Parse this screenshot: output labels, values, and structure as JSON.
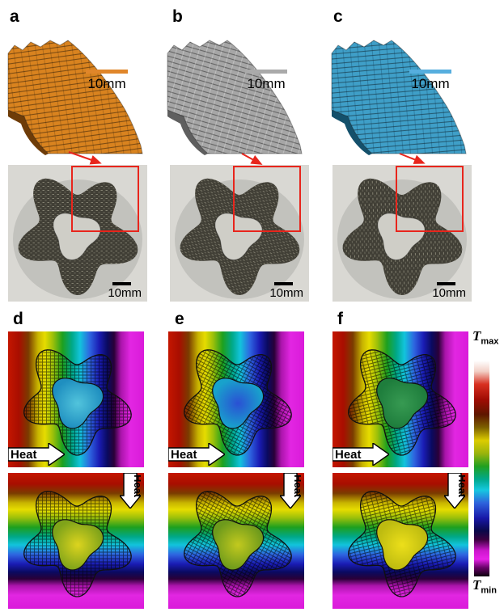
{
  "colors": {
    "accent_red": "#e8251c",
    "render_a": "#d9831f",
    "render_b": "#a6a6a6",
    "render_c": "#3f9fc8",
    "render_a_dark": "#6e3c08",
    "render_b_dark": "#5f5f5f",
    "render_c_dark": "#14506b",
    "scalebar_a": "#e0862a",
    "scalebar_b": "#aaaaaa",
    "scalebar_c": "#56aede",
    "photo_background": "#d9d8d3",
    "photo_hole": "#cfcec7",
    "lattice_dark": "#413f36",
    "hole_d_top_center": "#52c4dc",
    "hole_d_top_edge": "#1f8fc0",
    "hole_e_top_center": "#2a50d4",
    "hole_e_top_edge": "#18a2cc",
    "hole_f_top_center": "#379a52",
    "hole_f_top_edge": "#1e7d3c",
    "hole_d_bottom_center": "#dcd41e",
    "hole_d_bottom_edge": "#7fa31a",
    "hole_e_bottom_center": "#c2c91e",
    "hole_e_bottom_edge": "#6d9a1c",
    "hole_f_bottom_center": "#ecdf1a",
    "hole_f_bottom_edge": "#bdbb10"
  },
  "render_row": {
    "panels": [
      {
        "label": "a",
        "scalebar_label": "10mm"
      },
      {
        "label": "b",
        "scalebar_label": "10mm"
      },
      {
        "label": "c",
        "scalebar_label": "10mm"
      }
    ]
  },
  "photo_row": {
    "panels": [
      {
        "scalebar_label": "10mm"
      },
      {
        "scalebar_label": "10mm"
      },
      {
        "scalebar_label": "10mm"
      }
    ]
  },
  "sim_row": {
    "panels": [
      {
        "label": "d",
        "heat_label_top": "Heat",
        "heat_label_bottom": "Heat"
      },
      {
        "label": "e",
        "heat_label_top": "Heat",
        "heat_label_bottom": "Heat"
      },
      {
        "label": "f",
        "heat_label_top": "Heat",
        "heat_label_bottom": "Heat"
      }
    ],
    "colorbar": {
      "max_symbol": "T",
      "max_subscript": "max",
      "min_symbol": "T",
      "min_subscript": "min"
    }
  }
}
